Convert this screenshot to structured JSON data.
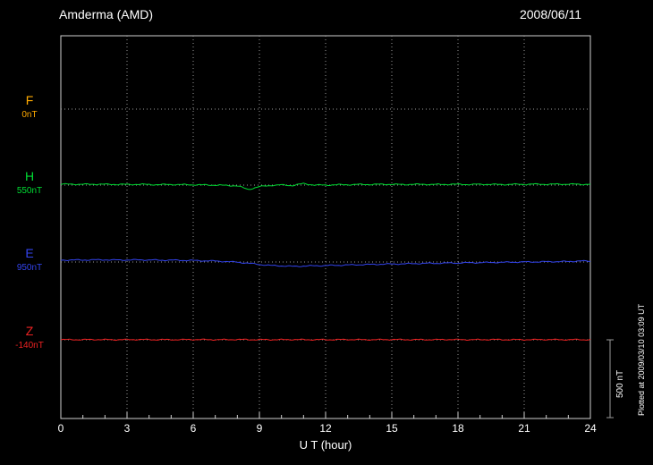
{
  "header": {
    "title": "Amderma (AMD)",
    "date": "2008/06/11"
  },
  "footer": {
    "note": "Plotted at 2009/03/10 03:09 UT"
  },
  "colors": {
    "background": "#000000",
    "frame": "#cfcfcf",
    "grid": "#9a9a9a",
    "text": "#ffffff"
  },
  "chart_data": {
    "type": "line",
    "title": "Amderma (AMD) magnetogram 2008/06/11",
    "xlabel": "U T (hour)",
    "x_unit": "hour (UT)",
    "x_start": 0,
    "x_step": 0.5,
    "x_end": 24,
    "xticks": [
      0,
      3,
      6,
      9,
      12,
      15,
      18,
      21,
      24
    ],
    "grid": "dotted",
    "scale_bar": {
      "label": "500 nT",
      "nT": 500
    },
    "series": [
      {
        "name": "F",
        "color": "#ffaa00",
        "baseline_label": "0nT",
        "baseline_nT": 0,
        "values": []
      },
      {
        "name": "H",
        "color": "#00dd33",
        "baseline_label": "550nT",
        "baseline_nT": 550,
        "values": [
          556,
          556,
          555,
          556,
          555,
          555,
          554,
          555,
          554,
          553,
          554,
          553,
          552,
          551,
          550,
          548,
          545,
          522,
          540,
          548,
          551,
          547,
          560,
          550,
          550,
          552,
          553,
          554,
          554,
          555,
          555,
          554,
          555,
          555,
          554,
          555,
          555,
          554,
          555,
          555,
          554,
          555,
          555,
          556,
          555,
          556,
          556,
          555,
          556
        ]
      },
      {
        "name": "E",
        "color": "#3344ee",
        "baseline_label": "950nT",
        "baseline_nT": 950,
        "values": [
          962,
          963,
          963,
          964,
          964,
          963,
          963,
          964,
          963,
          962,
          962,
          961,
          960,
          958,
          956,
          953,
          949,
          942,
          934,
          928,
          925,
          922,
          924,
          926,
          927,
          929,
          931,
          933,
          934,
          936,
          937,
          938,
          940,
          941,
          942,
          943,
          944,
          945,
          946,
          947,
          948,
          949,
          950,
          951,
          952,
          953,
          953,
          957,
          954
        ]
      },
      {
        "name": "Z",
        "color": "#ee2222",
        "baseline_label": "-140nT",
        "baseline_nT": -140,
        "values": [
          -139,
          -139,
          -139,
          -138,
          -139,
          -139,
          -139,
          -138,
          -139,
          -139,
          -139,
          -139,
          -138,
          -139,
          -139,
          -139,
          -138,
          -139,
          -139,
          -139,
          -139,
          -138,
          -139,
          -139,
          -139,
          -139,
          -138,
          -139,
          -139,
          -139,
          -138,
          -139,
          -139,
          -139,
          -139,
          -138,
          -139,
          -139,
          -139,
          -138,
          -139,
          -139,
          -139,
          -139,
          -138,
          -139,
          -139,
          -139,
          -139
        ]
      }
    ]
  }
}
